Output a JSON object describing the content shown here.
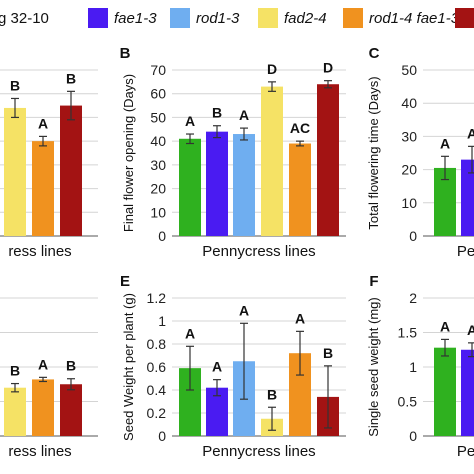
{
  "legend": [
    {
      "label": "g 32-10",
      "italic": false,
      "color": null
    },
    {
      "label": "fae1-3",
      "italic": true,
      "color": "#4a1bf2"
    },
    {
      "label": "rod1-3",
      "italic": true,
      "color": "#6faef0"
    },
    {
      "label": "fad2-4",
      "italic": true,
      "color": "#f5e265"
    },
    {
      "label": "rod1-4 fae1-3",
      "italic": true,
      "color": "#f0921f"
    },
    {
      "label": "",
      "italic": false,
      "color": "#a31313"
    }
  ],
  "colors": {
    "wt": "#2fb11f",
    "fae1-3": "#4a1bf2",
    "rod1-3": "#6faef0",
    "fad2-4": "#f5e265",
    "rod1-4 fae1-3": "#f0921f",
    "sixth": "#a31313"
  },
  "chart_data": [
    {
      "panel": "A",
      "type": "bar",
      "title": "",
      "xlabel": "ress lines",
      "ylabel": "",
      "ylim": [
        0,
        70
      ],
      "grid": true,
      "visible_categories": [
        "fad2-4",
        "rod1-4 fae1-3",
        "sixth"
      ],
      "values": [
        54,
        40,
        55
      ],
      "errors": [
        4,
        2,
        6
      ],
      "letters": [
        "B",
        "A",
        "B"
      ]
    },
    {
      "panel": "B",
      "type": "bar",
      "title": "B",
      "xlabel": "Pennycress lines",
      "ylabel": "Final flower opening (Days)",
      "ylim": [
        0,
        70
      ],
      "yticks": [
        0,
        10,
        20,
        30,
        40,
        50,
        60,
        70
      ],
      "grid": true,
      "categories": [
        "wt",
        "fae1-3",
        "rod1-3",
        "fad2-4",
        "rod1-4 fae1-3",
        "sixth"
      ],
      "values": [
        41,
        44,
        43,
        63,
        39,
        64
      ],
      "errors": [
        2,
        2.5,
        2.5,
        2,
        1,
        1.5
      ],
      "letters": [
        "A",
        "B",
        "A",
        "D",
        "AC",
        "D"
      ]
    },
    {
      "panel": "C",
      "type": "bar",
      "title": "C",
      "xlabel": "Pe",
      "ylabel": "Total flowering time (Days)",
      "ylim": [
        0,
        50
      ],
      "yticks": [
        0,
        10,
        20,
        30,
        40,
        50
      ],
      "grid": true,
      "visible_categories": [
        "wt",
        "fae1-3"
      ],
      "values": [
        20.5,
        23
      ],
      "errors": [
        3.5,
        4
      ],
      "letters": [
        "A",
        "A"
      ]
    },
    {
      "panel": "D",
      "type": "bar",
      "title": "",
      "xlabel": "ress lines",
      "ylabel": "",
      "ylim": [
        0,
        2
      ],
      "grid": true,
      "visible_categories": [
        "fad2-4",
        "rod1-4 fae1-3",
        "sixth"
      ],
      "values": [
        0.7,
        0.82,
        0.75
      ],
      "errors": [
        0.06,
        0.03,
        0.08
      ],
      "letters": [
        "B",
        "A",
        "B"
      ]
    },
    {
      "panel": "E",
      "type": "bar",
      "title": "E",
      "xlabel": "Pennycress lines",
      "ylabel": "Seed Weight per plant (g)",
      "ylim": [
        0,
        1.2
      ],
      "yticks": [
        0,
        0.2,
        0.4,
        0.6,
        0.8,
        1,
        1.2
      ],
      "grid": true,
      "categories": [
        "wt",
        "fae1-3",
        "rod1-3",
        "fad2-4",
        "rod1-4 fae1-3",
        "sixth"
      ],
      "values": [
        0.59,
        0.42,
        0.65,
        0.15,
        0.72,
        0.34
      ],
      "errors": [
        0.19,
        0.07,
        0.33,
        0.1,
        0.19,
        0.27
      ],
      "letters": [
        "A",
        "A",
        "A",
        "B",
        "A",
        "B"
      ]
    },
    {
      "panel": "F",
      "type": "bar",
      "title": "F",
      "xlabel": "Pe",
      "ylabel": "Single seed weight (mg)",
      "ylim": [
        0,
        2
      ],
      "yticks": [
        0,
        0.5,
        1,
        1.5,
        2
      ],
      "grid": true,
      "visible_categories": [
        "wt",
        "fae1-3"
      ],
      "values": [
        1.28,
        1.25
      ],
      "errors": [
        0.12,
        0.1
      ],
      "letters": [
        "A",
        "A"
      ]
    }
  ]
}
